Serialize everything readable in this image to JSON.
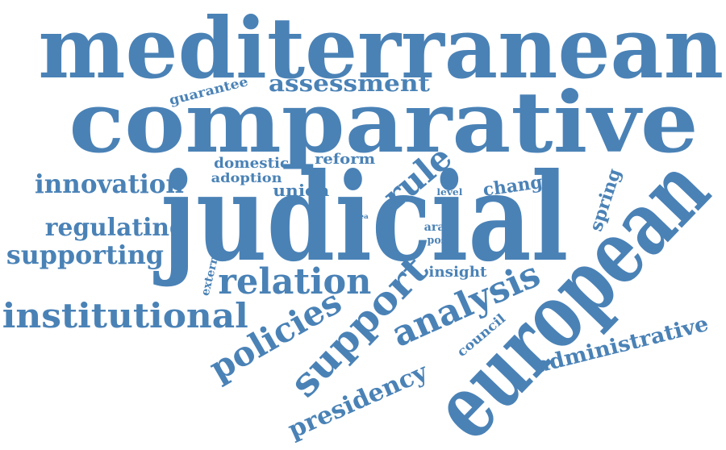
{
  "color": "#4a82b6",
  "words": [
    {
      "id": "mediterranean",
      "text": "mediterranean"
    },
    {
      "id": "comparative",
      "text": "comparative"
    },
    {
      "id": "judicial",
      "text": "judicial"
    },
    {
      "id": "european",
      "text": "european"
    },
    {
      "id": "support",
      "text": "support"
    },
    {
      "id": "analysis",
      "text": "analysis"
    },
    {
      "id": "policies",
      "text": "policies"
    },
    {
      "id": "institutional",
      "text": "institutional"
    },
    {
      "id": "relation",
      "text": "relation"
    },
    {
      "id": "rule",
      "text": "rule"
    },
    {
      "id": "presidency",
      "text": "presidency"
    },
    {
      "id": "assessment",
      "text": "assessment"
    },
    {
      "id": "innovation",
      "text": "innovation"
    },
    {
      "id": "regulating",
      "text": "regulating"
    },
    {
      "id": "supporting",
      "text": "supporting"
    },
    {
      "id": "administrative",
      "text": "administrative"
    },
    {
      "id": "guarantee",
      "text": "guarantee"
    },
    {
      "id": "domestic",
      "text": "domestic"
    },
    {
      "id": "reform",
      "text": "reform"
    },
    {
      "id": "adoption",
      "text": "adoption"
    },
    {
      "id": "union",
      "text": "union"
    },
    {
      "id": "change",
      "text": "change"
    },
    {
      "id": "level",
      "text": "level"
    },
    {
      "id": "spring",
      "text": "spring"
    },
    {
      "id": "arab",
      "text": "arab"
    },
    {
      "id": "post",
      "text": "post"
    },
    {
      "id": "area",
      "text": "area"
    },
    {
      "id": "insight",
      "text": "insight"
    },
    {
      "id": "external",
      "text": "external"
    },
    {
      "id": "council",
      "text": "council"
    }
  ]
}
